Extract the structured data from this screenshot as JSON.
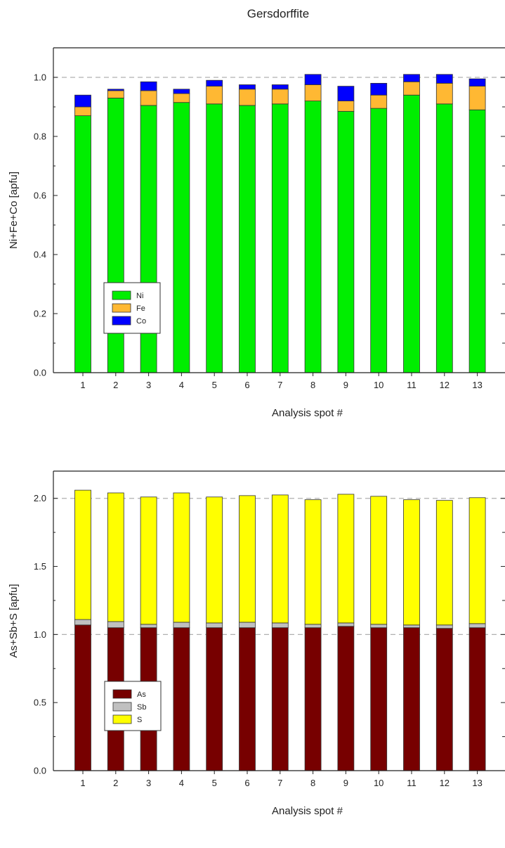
{
  "figure_title": "Gersdorffite",
  "chart_data": [
    {
      "type": "bar",
      "stacked": true,
      "categories": [
        "1",
        "2",
        "3",
        "4",
        "5",
        "6",
        "7",
        "8",
        "9",
        "10",
        "11",
        "12",
        "13"
      ],
      "series": [
        {
          "name": "Ni",
          "color": "#00ee00",
          "values": [
            0.87,
            0.93,
            0.905,
            0.915,
            0.91,
            0.905,
            0.91,
            0.92,
            0.885,
            0.895,
            0.94,
            0.91,
            0.89
          ]
        },
        {
          "name": "Fe",
          "color": "#ffb833",
          "values": [
            0.03,
            0.025,
            0.05,
            0.03,
            0.06,
            0.055,
            0.05,
            0.055,
            0.035,
            0.045,
            0.045,
            0.07,
            0.08
          ]
        },
        {
          "name": "Co",
          "color": "#0000ff",
          "values": [
            0.04,
            0.005,
            0.03,
            0.015,
            0.02,
            0.015,
            0.015,
            0.035,
            0.05,
            0.04,
            0.025,
            0.03,
            0.025
          ]
        }
      ],
      "xlabel": "Analysis spot #",
      "ylabel": "Ni+Fe+Co [apfu]",
      "ylim": [
        0,
        1.1
      ],
      "yticks": [
        0.0,
        0.2,
        0.4,
        0.6,
        0.8,
        1.0
      ],
      "reference_lines": [
        1.0
      ],
      "legend_position": "lower-left"
    },
    {
      "type": "bar",
      "stacked": true,
      "categories": [
        "1",
        "2",
        "3",
        "4",
        "5",
        "6",
        "7",
        "8",
        "9",
        "10",
        "11",
        "12",
        "13"
      ],
      "series": [
        {
          "name": "As",
          "color": "#770000",
          "values": [
            1.07,
            1.05,
            1.05,
            1.05,
            1.05,
            1.05,
            1.05,
            1.05,
            1.06,
            1.05,
            1.05,
            1.045,
            1.05
          ]
        },
        {
          "name": "Sb",
          "color": "#c0c0c0",
          "values": [
            0.04,
            0.045,
            0.025,
            0.04,
            0.035,
            0.04,
            0.035,
            0.025,
            0.025,
            0.025,
            0.02,
            0.025,
            0.03
          ]
        },
        {
          "name": "S",
          "color": "#ffff00",
          "values": [
            0.95,
            0.945,
            0.935,
            0.95,
            0.925,
            0.93,
            0.94,
            0.915,
            0.945,
            0.94,
            0.92,
            0.915,
            0.925
          ]
        }
      ],
      "xlabel": "Analysis spot #",
      "ylabel": "As+Sb+S [apfu]",
      "ylim": [
        0,
        2.2
      ],
      "yticks": [
        0.0,
        0.5,
        1.0,
        1.5,
        2.0
      ],
      "reference_lines": [
        1.0,
        2.0
      ],
      "legend_position": "lower-left"
    }
  ]
}
